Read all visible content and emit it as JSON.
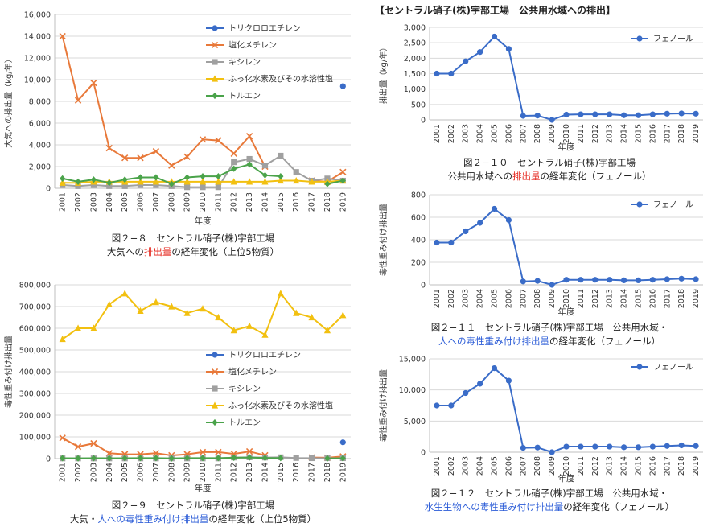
{
  "section_title": "【セントラル硝子(株)宇部工場　公共用水域への排出】",
  "captions": {
    "c1": {
      "line1": "図２−８　セントラル硝子(株)宇部工場",
      "pre": "大気への",
      "hl": "排出量",
      "post": "の経年変化（上位5物質）"
    },
    "c2": {
      "line1": "図２−９　セントラル硝子(株)宇部工場",
      "pre": "大気・",
      "hl": "人への毒性重み付け排出量",
      "post": "の経年変化（上位5物質）"
    },
    "c3": {
      "line1": "図２−１０　セントラル硝子(株)宇部工場",
      "pre": "公共用水域への",
      "hl": "排出量",
      "post": "の経年変化（フェノール）"
    },
    "c4": {
      "line1": "図２−１１　セントラル硝子(株)宇部工場　公共用水域・",
      "pre": "",
      "hl": "人への毒性重み付け排出量",
      "post": "の経年変化（フェノール）"
    },
    "c5": {
      "line1": "図２−１２　セントラル硝子(株)宇部工場　公共用水域・",
      "pre": "",
      "hl": "水生生物への毒性重み付け排出量",
      "post": "の経年変化（フェノール）"
    }
  },
  "chart_data": [
    {
      "id": "fig2-8",
      "type": "line",
      "title": "",
      "xlabel": "年度",
      "ylabel": "大気への排出量（kg/年）",
      "x": [
        "2001",
        "2002",
        "2003",
        "2004",
        "2005",
        "2006",
        "2007",
        "2008",
        "2009",
        "2010",
        "2011",
        "2012",
        "2013",
        "2014",
        "2015",
        "2016",
        "2017",
        "2018",
        "2019"
      ],
      "ylim": [
        0,
        16000
      ],
      "yticks": [
        0,
        2000,
        4000,
        6000,
        8000,
        10000,
        12000,
        14000,
        16000
      ],
      "ytick_labels": [
        "0",
        "2,000",
        "4,000",
        "6,000",
        "8,000",
        "10,000",
        "12,000",
        "14,000",
        "16,000"
      ],
      "grid": true,
      "legend": "top-right",
      "series": [
        {
          "name": "トリクロロエチレン",
          "color": "#3a6cc8",
          "marker": "circle",
          "values": [
            null,
            null,
            null,
            null,
            null,
            null,
            null,
            null,
            null,
            null,
            null,
            null,
            null,
            null,
            null,
            null,
            null,
            null,
            9400
          ]
        },
        {
          "name": "塩化メチレン",
          "color": "#e8793a",
          "marker": "x",
          "values": [
            14000,
            8100,
            9700,
            3700,
            2800,
            2800,
            3400,
            2100,
            2900,
            4500,
            4400,
            3200,
            4800,
            2000,
            null,
            null,
            700,
            600,
            1500
          ]
        },
        {
          "name": "キシレン",
          "color": "#a0a0a0",
          "marker": "square",
          "values": [
            300,
            200,
            300,
            200,
            200,
            300,
            300,
            200,
            100,
            100,
            100,
            2400,
            2700,
            2100,
            3000,
            1500,
            700,
            900,
            700
          ]
        },
        {
          "name": "ふっ化水素及びその水溶性塩",
          "color": "#f2c010",
          "marker": "triangle",
          "values": [
            500,
            500,
            600,
            600,
            600,
            600,
            600,
            600,
            600,
            600,
            600,
            600,
            600,
            600,
            700,
            700,
            600,
            600,
            700
          ]
        },
        {
          "name": "トルエン",
          "color": "#4aa34a",
          "marker": "diamond",
          "values": [
            900,
            600,
            800,
            500,
            800,
            1000,
            1000,
            400,
            1000,
            1100,
            1100,
            1800,
            2200,
            1200,
            1100,
            null,
            null,
            400,
            700
          ]
        }
      ]
    },
    {
      "id": "fig2-9",
      "type": "line",
      "title": "",
      "xlabel": "年度",
      "ylabel": "毒性重み付け排出量",
      "x": [
        "2001",
        "2002",
        "2003",
        "2004",
        "2005",
        "2006",
        "2007",
        "2008",
        "2009",
        "2010",
        "2011",
        "2012",
        "2013",
        "2014",
        "2015",
        "2016",
        "2017",
        "2018",
        "2019"
      ],
      "ylim": [
        0,
        800000
      ],
      "yticks": [
        0,
        100000,
        200000,
        300000,
        400000,
        500000,
        600000,
        700000,
        800000
      ],
      "ytick_labels": [
        "0",
        "100,000",
        "200,000",
        "300,000",
        "400,000",
        "500,000",
        "600,000",
        "700,000",
        "800,000"
      ],
      "grid": true,
      "legend": "center-right",
      "series": [
        {
          "name": "トリクロロエチレン",
          "color": "#3a6cc8",
          "marker": "circle",
          "values": [
            null,
            null,
            null,
            null,
            null,
            null,
            null,
            null,
            null,
            null,
            null,
            null,
            null,
            null,
            null,
            null,
            null,
            null,
            75000
          ]
        },
        {
          "name": "塩化メチレン",
          "color": "#e8793a",
          "marker": "x",
          "values": [
            95000,
            55000,
            70000,
            25000,
            20000,
            20000,
            25000,
            15000,
            20000,
            30000,
            30000,
            22000,
            33000,
            15000,
            null,
            null,
            5000,
            4000,
            10000
          ]
        },
        {
          "name": "キシレン",
          "color": "#a0a0a0",
          "marker": "square",
          "values": [
            1000,
            1000,
            1000,
            1000,
            1000,
            1000,
            1000,
            1000,
            1000,
            1000,
            1000,
            5000,
            6000,
            5000,
            6000,
            3000,
            2000,
            2000,
            2000
          ]
        },
        {
          "name": "ふっ化水素及びその水溶性塩",
          "color": "#f2c010",
          "marker": "triangle",
          "values": [
            550000,
            600000,
            600000,
            710000,
            760000,
            680000,
            720000,
            700000,
            670000,
            690000,
            650000,
            590000,
            610000,
            570000,
            760000,
            670000,
            650000,
            590000,
            660000
          ]
        },
        {
          "name": "トルエン",
          "color": "#4aa34a",
          "marker": "diamond",
          "values": [
            2000,
            1500,
            2000,
            1500,
            2000,
            2500,
            2500,
            1000,
            2500,
            2500,
            2500,
            4000,
            5000,
            3000,
            2500,
            null,
            null,
            1000,
            1500
          ]
        }
      ]
    },
    {
      "id": "fig2-10",
      "type": "line",
      "title": "",
      "xlabel": "年度",
      "ylabel": "排出量（kg/年）",
      "x": [
        "2001",
        "2002",
        "2003",
        "2004",
        "2005",
        "2006",
        "2007",
        "2008",
        "2009",
        "2010",
        "2011",
        "2012",
        "2013",
        "2014",
        "2015",
        "2016",
        "2017",
        "2018",
        "2019"
      ],
      "ylim": [
        0,
        3000
      ],
      "yticks": [
        0,
        500,
        1000,
        1500,
        2000,
        2500,
        3000
      ],
      "ytick_labels": [
        "0",
        "500",
        "1,000",
        "1,500",
        "2,000",
        "2,500",
        "3,000"
      ],
      "grid": true,
      "legend": "top-right",
      "series": [
        {
          "name": "フェノール",
          "color": "#3a6cc8",
          "marker": "circle",
          "values": [
            1500,
            1500,
            1900,
            2200,
            2700,
            2300,
            130,
            140,
            0,
            170,
            180,
            180,
            180,
            150,
            150,
            180,
            200,
            210,
            200
          ]
        }
      ]
    },
    {
      "id": "fig2-11",
      "type": "line",
      "title": "",
      "xlabel": "年度",
      "ylabel": "毒性重み付け排出量",
      "x": [
        "2001",
        "2002",
        "2003",
        "2004",
        "2005",
        "2006",
        "2007",
        "2008",
        "2009",
        "2010",
        "2011",
        "2012",
        "2013",
        "2014",
        "2015",
        "2016",
        "2017",
        "2018",
        "2019"
      ],
      "ylim": [
        0,
        800
      ],
      "yticks": [
        0,
        200,
        400,
        600,
        800
      ],
      "ytick_labels": [
        "0",
        "200",
        "400",
        "600",
        "800"
      ],
      "grid": true,
      "legend": "top-right",
      "series": [
        {
          "name": "フェノール",
          "color": "#3a6cc8",
          "marker": "circle",
          "values": [
            375,
            375,
            475,
            550,
            675,
            575,
            30,
            35,
            0,
            45,
            45,
            45,
            45,
            40,
            40,
            45,
            50,
            55,
            50
          ]
        }
      ]
    },
    {
      "id": "fig2-12",
      "type": "line",
      "title": "",
      "xlabel": "年度",
      "ylabel": "毒性重み付け排出量",
      "x": [
        "2001",
        "2002",
        "2003",
        "2004",
        "2005",
        "2006",
        "2007",
        "2008",
        "2009",
        "2010",
        "2011",
        "2012",
        "2013",
        "2014",
        "2015",
        "2016",
        "2017",
        "2018",
        "2019"
      ],
      "ylim": [
        0,
        15000
      ],
      "yticks": [
        0,
        5000,
        10000,
        15000
      ],
      "ytick_labels": [
        "0",
        "5,000",
        "10,000",
        "15,000"
      ],
      "grid": true,
      "legend": "top-right",
      "series": [
        {
          "name": "フェノール",
          "color": "#3a6cc8",
          "marker": "circle",
          "values": [
            7500,
            7500,
            9500,
            11000,
            13500,
            11500,
            700,
            750,
            0,
            900,
            900,
            900,
            900,
            800,
            800,
            900,
            1000,
            1100,
            1000
          ]
        }
      ]
    }
  ]
}
